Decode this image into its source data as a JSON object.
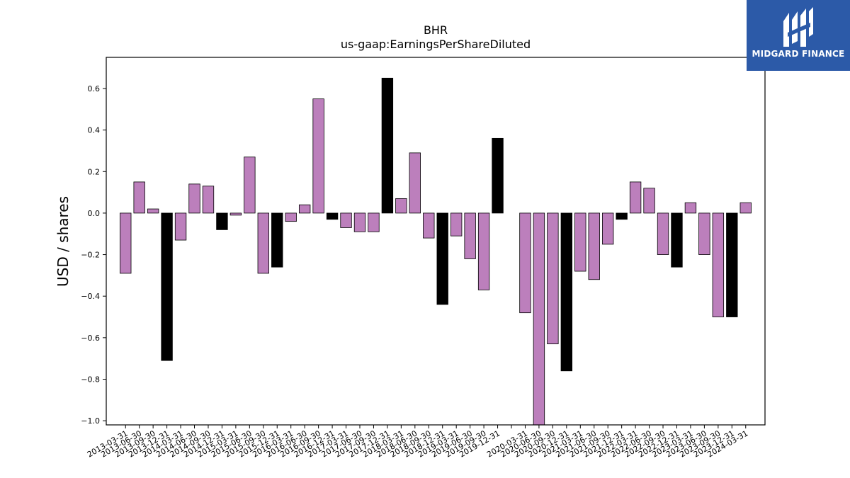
{
  "chart_data": {
    "type": "bar",
    "title": "BHR",
    "subtitle": "us-gaap:EarningsPerShareDiluted",
    "xlabel": "",
    "ylabel": "USD / shares",
    "ylim": [
      -1.02,
      0.75
    ],
    "yticks": [
      0.6,
      0.4,
      0.2,
      0.0,
      -0.2,
      -0.4,
      -0.6,
      -0.8,
      -1.0
    ],
    "ytick_labels": [
      "0.6",
      "0.4",
      "0.2",
      "0.0",
      "−0.2",
      "−0.4",
      "−0.6",
      "−0.8",
      "−1.0"
    ],
    "grid": false,
    "colors": {
      "quarter": "#bc7fbc",
      "annual": "#000000",
      "edge": "#000000"
    },
    "bars": [
      {
        "x": 1,
        "label": "2013-03-31",
        "value": -0.29,
        "kind": "quarter"
      },
      {
        "x": 2,
        "label": "2013-06-30",
        "value": 0.15,
        "kind": "quarter"
      },
      {
        "x": 3,
        "label": "2013-09-30",
        "value": 0.02,
        "kind": "quarter"
      },
      {
        "x": 4,
        "label": "2013-12-31",
        "value": -0.71,
        "kind": "annual"
      },
      {
        "x": 5,
        "label": "2014-03-31",
        "value": -0.13,
        "kind": "quarter"
      },
      {
        "x": 6,
        "label": "2014-06-30",
        "value": 0.14,
        "kind": "quarter"
      },
      {
        "x": 7,
        "label": "2014-09-30",
        "value": 0.13,
        "kind": "quarter"
      },
      {
        "x": 8,
        "label": "2014-12-31",
        "value": -0.08,
        "kind": "annual"
      },
      {
        "x": 9,
        "label": "2015-03-31",
        "value": -0.01,
        "kind": "quarter"
      },
      {
        "x": 10,
        "label": "2015-06-30",
        "value": 0.27,
        "kind": "quarter"
      },
      {
        "x": 11,
        "label": "2015-09-30",
        "value": -0.29,
        "kind": "quarter"
      },
      {
        "x": 12,
        "label": "2015-12-31",
        "value": -0.26,
        "kind": "annual"
      },
      {
        "x": 13,
        "label": "2016-03-31",
        "value": -0.04,
        "kind": "quarter"
      },
      {
        "x": 14,
        "label": "2016-06-30",
        "value": 0.04,
        "kind": "quarter"
      },
      {
        "x": 15,
        "label": "2016-09-30",
        "value": 0.55,
        "kind": "quarter"
      },
      {
        "x": 16,
        "label": "2016-12-31",
        "value": -0.03,
        "kind": "annual"
      },
      {
        "x": 17,
        "label": "2017-03-31",
        "value": -0.07,
        "kind": "quarter"
      },
      {
        "x": 18,
        "label": "2017-06-30",
        "value": -0.09,
        "kind": "quarter"
      },
      {
        "x": 19,
        "label": "2017-09-30",
        "value": -0.09,
        "kind": "quarter"
      },
      {
        "x": 20,
        "label": "2017-12-31",
        "value": 0.65,
        "kind": "annual"
      },
      {
        "x": 21,
        "label": "2018-03-31",
        "value": 0.07,
        "kind": "quarter"
      },
      {
        "x": 22,
        "label": "2018-06-30",
        "value": 0.29,
        "kind": "quarter"
      },
      {
        "x": 23,
        "label": "2018-09-30",
        "value": -0.12,
        "kind": "quarter"
      },
      {
        "x": 24,
        "label": "2018-12-31",
        "value": -0.44,
        "kind": "annual"
      },
      {
        "x": 25,
        "label": "2019-03-31",
        "value": -0.11,
        "kind": "quarter"
      },
      {
        "x": 26,
        "label": "2019-06-30",
        "value": -0.22,
        "kind": "quarter"
      },
      {
        "x": 27,
        "label": "2019-09-30",
        "value": -0.37,
        "kind": "quarter"
      },
      {
        "x": 28,
        "label": "2019-12-31",
        "value": 0.36,
        "kind": "annual"
      },
      {
        "x": 30,
        "label": "2020-03-31",
        "value": -0.48,
        "kind": "quarter"
      },
      {
        "x": 31,
        "label": "2020-06-30",
        "value": -1.06,
        "kind": "quarter"
      },
      {
        "x": 32,
        "label": "2020-09-30",
        "value": -0.63,
        "kind": "quarter"
      },
      {
        "x": 33,
        "label": "2020-12-31",
        "value": -0.76,
        "kind": "annual"
      },
      {
        "x": 34,
        "label": "2021-03-31",
        "value": -0.28,
        "kind": "quarter"
      },
      {
        "x": 35,
        "label": "2021-06-30",
        "value": -0.32,
        "kind": "quarter"
      },
      {
        "x": 36,
        "label": "2021-09-30",
        "value": -0.15,
        "kind": "quarter"
      },
      {
        "x": 37,
        "label": "2021-12-31",
        "value": -0.03,
        "kind": "annual"
      },
      {
        "x": 38,
        "label": "2022-03-31",
        "value": 0.15,
        "kind": "quarter"
      },
      {
        "x": 39,
        "label": "2022-06-30",
        "value": 0.12,
        "kind": "quarter"
      },
      {
        "x": 40,
        "label": "2022-09-30",
        "value": -0.2,
        "kind": "quarter"
      },
      {
        "x": 41,
        "label": "2022-12-31",
        "value": -0.26,
        "kind": "annual"
      },
      {
        "x": 42,
        "label": "2023-03-31",
        "value": 0.05,
        "kind": "quarter"
      },
      {
        "x": 43,
        "label": "2023-06-30",
        "value": -0.2,
        "kind": "quarter"
      },
      {
        "x": 44,
        "label": "2023-09-30",
        "value": -0.5,
        "kind": "quarter"
      },
      {
        "x": 45,
        "label": "2023-12-31",
        "value": -0.5,
        "kind": "annual"
      },
      {
        "x": 46,
        "label": "2024-03-31",
        "value": 0.05,
        "kind": "quarter"
      }
    ]
  },
  "logo": {
    "text": "MIDGARD FINANCE",
    "bg_color": "#2c5aa8",
    "icon": "midgard-logo-icon"
  }
}
